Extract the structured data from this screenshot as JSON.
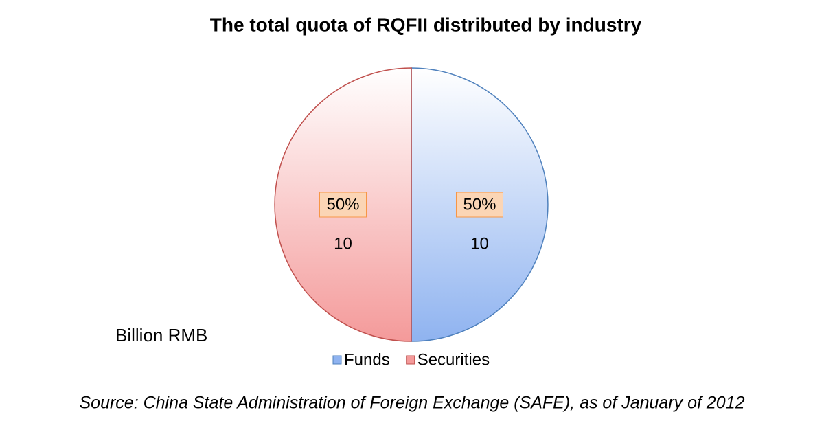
{
  "chart_data": {
    "type": "pie",
    "title": "The total quota of RQFII distributed by industry",
    "categories": [
      "Funds",
      "Securities"
    ],
    "values": [
      10,
      10
    ],
    "value_labels": [
      "50%",
      "50%"
    ],
    "colors": [
      "#8fb3f0",
      "#f49a9a"
    ],
    "edge_colors": [
      "#4f81bd",
      "#c0504d"
    ],
    "unit_label": "Billion RMB",
    "legend": "bottom",
    "source": "Source: China State Administration of Foreign Exchange (SAFE), as of January of 2012"
  }
}
